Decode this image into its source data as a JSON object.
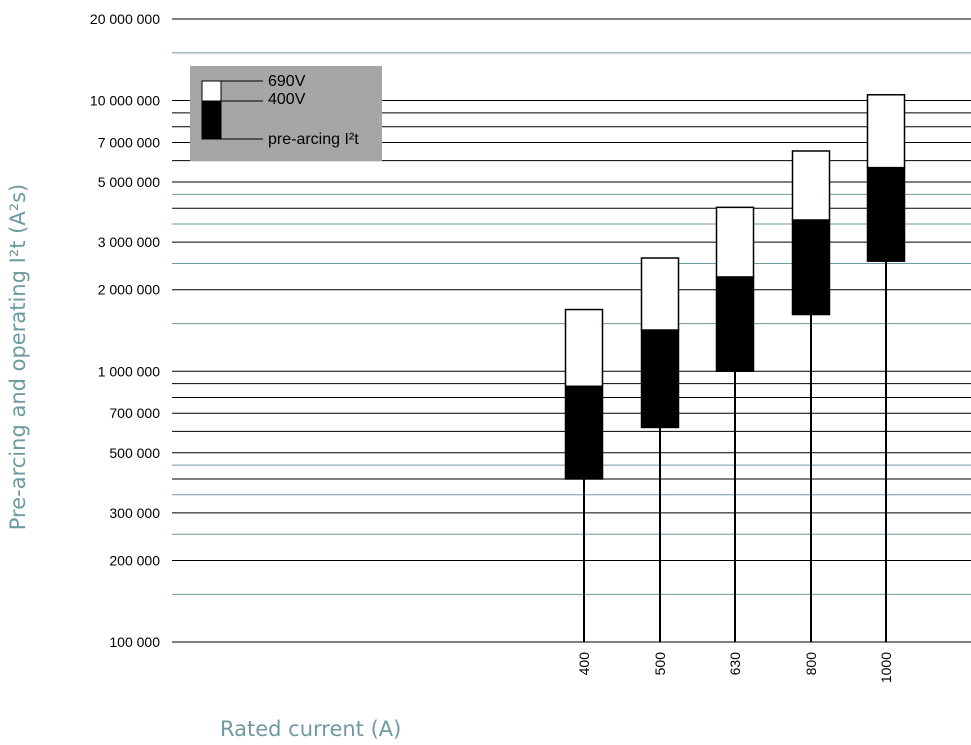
{
  "chart_data": {
    "type": "bar",
    "subtype": "floating-range",
    "scale": "log",
    "categories": [
      "400",
      "500",
      "630",
      "800",
      "1000"
    ],
    "series": [
      {
        "name": "pre-arcing I²t",
        "low": [
          400000,
          620000,
          1000000,
          1620000,
          2550000
        ],
        "high": [
          880000,
          1420000,
          2230000,
          3620000,
          5650000
        ]
      },
      {
        "name": "690V",
        "low": [
          880000,
          1420000,
          2230000,
          3620000,
          5650000
        ],
        "high": [
          1690000,
          2620000,
          4030000,
          6510000,
          10500000
        ]
      }
    ],
    "xlabel": "Rated current (A)",
    "ylabel": "Pre-arcing and operating I²t (A²s)",
    "ylim": [
      100000,
      20000000
    ],
    "yticks": [
      {
        "value": 20000000,
        "label": "20 000 000"
      },
      {
        "value": 10000000,
        "label": "10 000 000"
      },
      {
        "value": 7000000,
        "label": "7 000 000"
      },
      {
        "value": 5000000,
        "label": "5 000 000"
      },
      {
        "value": 3000000,
        "label": "3 000 000"
      },
      {
        "value": 2000000,
        "label": "2 000 000"
      },
      {
        "value": 1000000,
        "label": "1 000 000"
      },
      {
        "value": 700000,
        "label": "700 000"
      },
      {
        "value": 500000,
        "label": "500 000"
      },
      {
        "value": 300000,
        "label": "300 000"
      },
      {
        "value": 200000,
        "label": "200 000"
      },
      {
        "value": 100000,
        "label": "100 000"
      }
    ],
    "gridlines_dark": [
      100000,
      200000,
      300000,
      400000,
      500000,
      600000,
      700000,
      800000,
      900000,
      1000000,
      2000000,
      3000000,
      4000000,
      5000000,
      6000000,
      7000000,
      8000000,
      9000000,
      10000000,
      20000000
    ],
    "gridlines_light": [
      150000,
      250000,
      350000,
      450000,
      1500000,
      2500000,
      3500000,
      4500000,
      15000000
    ],
    "legend": {
      "position": "top-left",
      "items": [
        "690V",
        "400V",
        "pre-arcing I²t"
      ]
    },
    "colors": {
      "grid_dark": "#000000",
      "grid_light": "#6f9aa0",
      "axis_title": "#6f9aa0",
      "legend_bg": "#a6a6a6",
      "bar_low": "#000000",
      "bar_high": "#ffffff"
    }
  }
}
